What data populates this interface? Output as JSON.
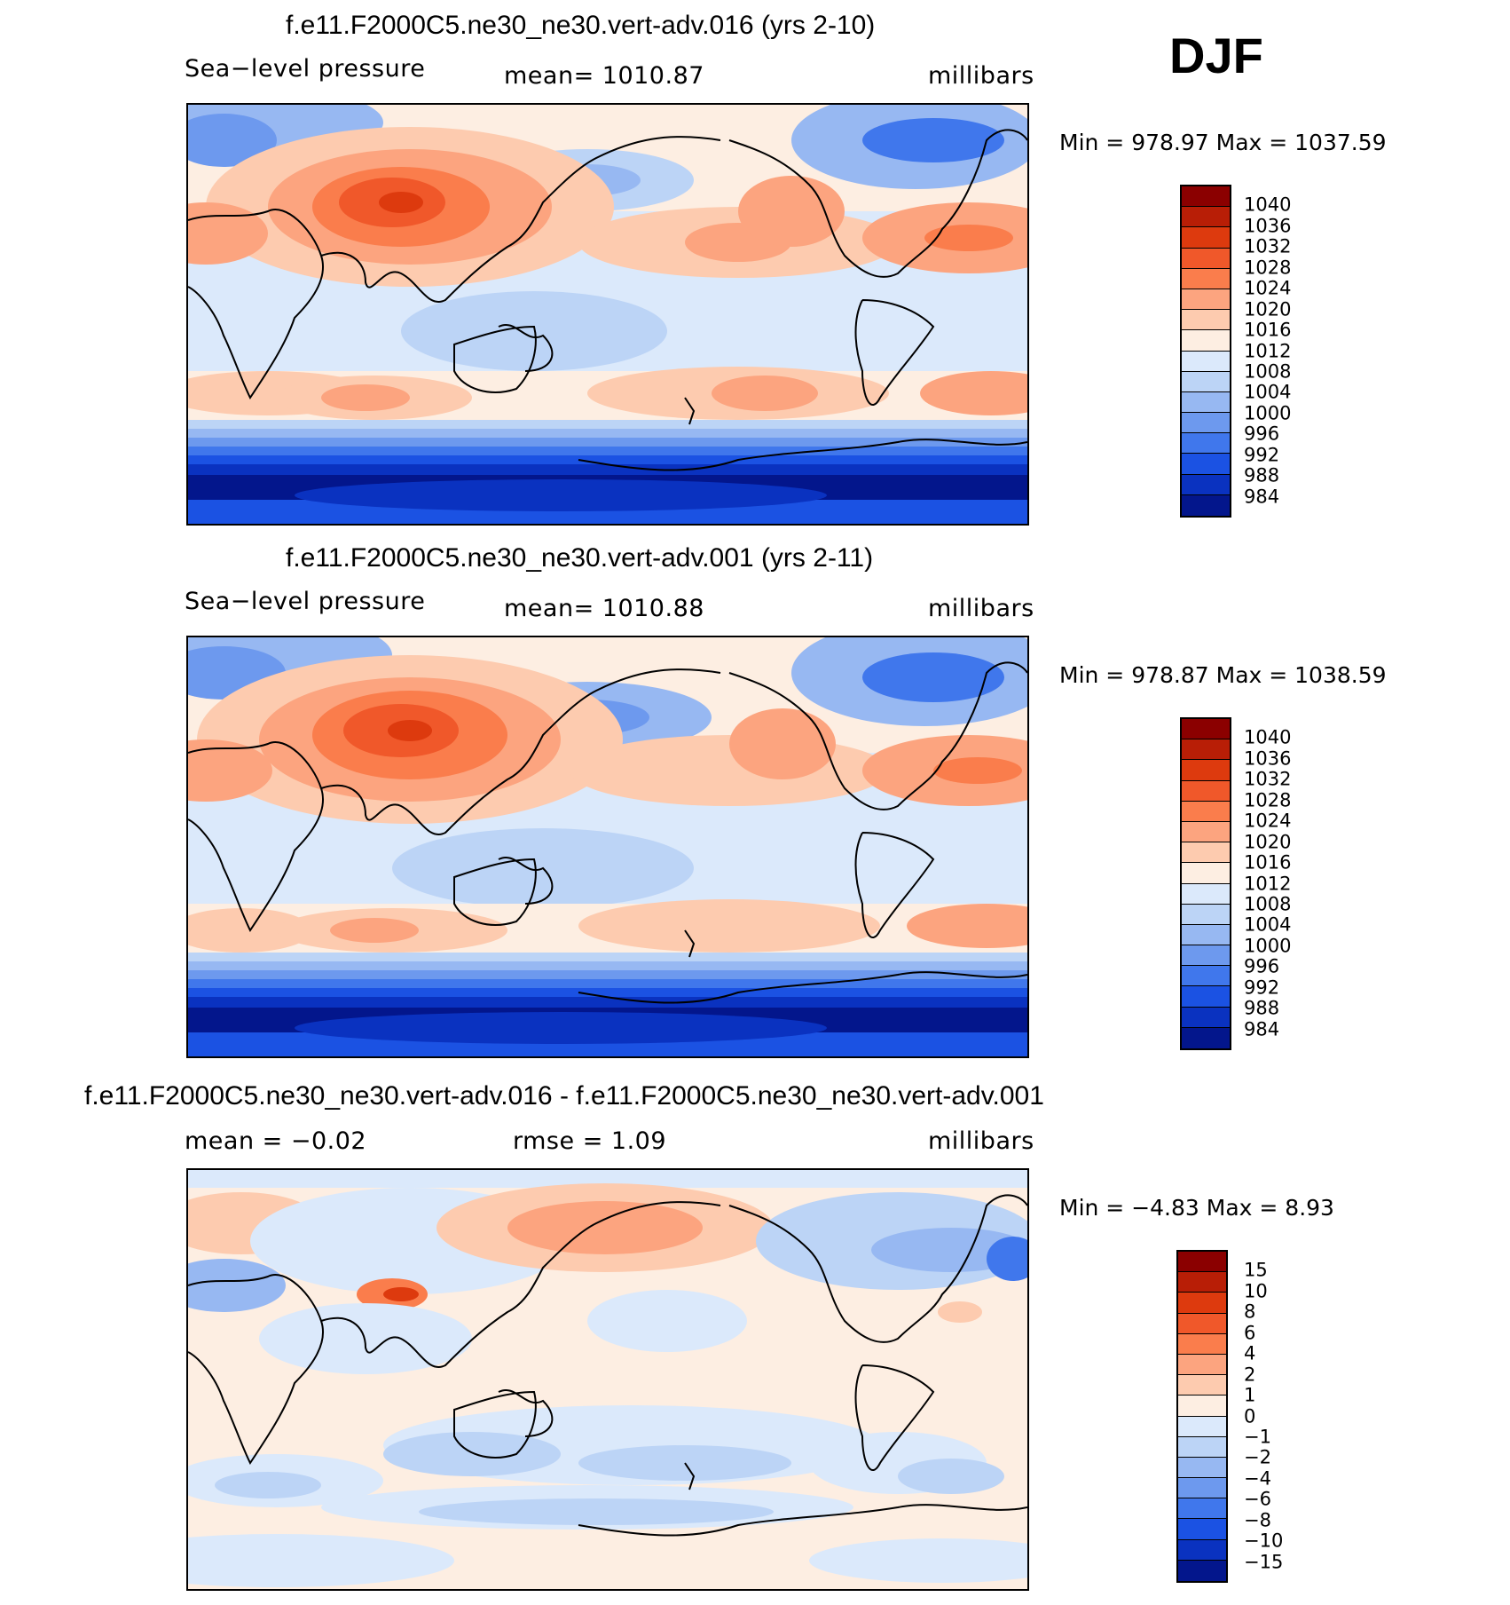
{
  "season": "DJF",
  "panels": [
    {
      "title": "f.e11.F2000C5.ne30_ne30.vert-adv.016 (yrs 2-10)",
      "left_label": "Sea−level pressure",
      "mid_label": "mean=  1010.87",
      "units": "millibars",
      "minmax": "Min  =  978.97  Max  =  1037.59",
      "colorbar": {
        "labels": [
          "1040",
          "1036",
          "1032",
          "1028",
          "1024",
          "1020",
          "1016",
          "1012",
          "1008",
          "1004",
          "1000",
          "996",
          "992",
          "988",
          "984"
        ],
        "colors": [
          "#8b0000",
          "#b81e06",
          "#dd3a0e",
          "#f0582a",
          "#fa7d4c",
          "#fca47f",
          "#fdcbaf",
          "#fdeee2",
          "#dbe9fb",
          "#bcd4f6",
          "#97b8f2",
          "#6d99ee",
          "#4077ec",
          "#1b52e3",
          "#0a32c0",
          "#03168c"
        ]
      }
    },
    {
      "title": "f.e11.F2000C5.ne30_ne30.vert-adv.001 (yrs 2-11)",
      "left_label": "Sea−level pressure",
      "mid_label": "mean=  1010.88",
      "units": "millibars",
      "minmax": "Min  =  978.87  Max  =  1038.59",
      "colorbar": {
        "labels": [
          "1040",
          "1036",
          "1032",
          "1028",
          "1024",
          "1020",
          "1016",
          "1012",
          "1008",
          "1004",
          "1000",
          "996",
          "992",
          "988",
          "984"
        ],
        "colors": [
          "#8b0000",
          "#b81e06",
          "#dd3a0e",
          "#f0582a",
          "#fa7d4c",
          "#fca47f",
          "#fdcbaf",
          "#fdeee2",
          "#dbe9fb",
          "#bcd4f6",
          "#97b8f2",
          "#6d99ee",
          "#4077ec",
          "#1b52e3",
          "#0a32c0",
          "#03168c"
        ]
      }
    },
    {
      "title": "f.e11.F2000C5.ne30_ne30.vert-adv.016 - f.e11.F2000C5.ne30_ne30.vert-adv.001",
      "left_label": "mean  =    −0.02",
      "mid_label": "rmse  =     1.09",
      "units": "millibars",
      "minmax": "Min  =    −4.83  Max  =      8.93",
      "colorbar": {
        "labels": [
          "15",
          "10",
          "8",
          "6",
          "4",
          "2",
          "1",
          "0",
          "−1",
          "−2",
          "−4",
          "−6",
          "−8",
          "−10",
          "−15"
        ],
        "colors": [
          "#8b0000",
          "#b81e06",
          "#dd3a0e",
          "#f0582a",
          "#fa7d4c",
          "#fca47f",
          "#fdcbaf",
          "#fdeee2",
          "#dbe9fb",
          "#bcd4f6",
          "#97b8f2",
          "#6d99ee",
          "#4077ec",
          "#1b52e3",
          "#0a32c0",
          "#03168c"
        ]
      }
    }
  ]
}
